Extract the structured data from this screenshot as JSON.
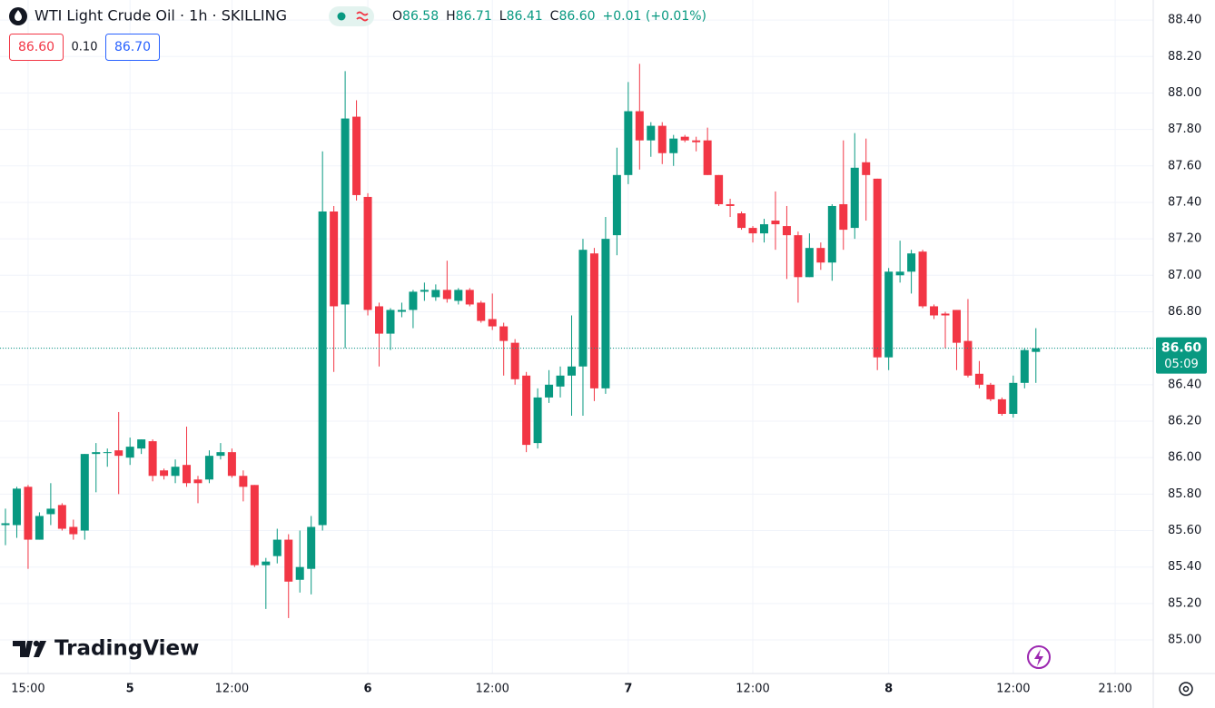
{
  "chart_data": {
    "type": "candlestick",
    "title": "WTI Light Crude Oil · 1h · SKILLING",
    "categories": [
      null,
      null,
      "15:00",
      null,
      null,
      null,
      null,
      null,
      null,
      null,
      null,
      "5",
      null,
      null,
      null,
      null,
      null,
      null,
      null,
      null,
      "12:00",
      null,
      null,
      null,
      null,
      null,
      null,
      null,
      null,
      null,
      null,
      null,
      "6",
      null,
      null,
      null,
      null,
      null,
      null,
      null,
      null,
      null,
      null,
      "12:00",
      null,
      null,
      null,
      null,
      null,
      null,
      null,
      null,
      null,
      null,
      null,
      "7",
      null,
      null,
      null,
      null,
      null,
      null,
      null,
      null,
      null,
      null,
      "12:00",
      null,
      null,
      null,
      null,
      null,
      null,
      null,
      null,
      null,
      null,
      null,
      "8",
      null,
      null,
      null,
      null,
      null,
      null,
      null,
      null,
      null,
      null,
      "12:00",
      null,
      null,
      null,
      null,
      null,
      null,
      null,
      null,
      "21:00"
    ],
    "open": [
      85.63,
      85.63,
      85.84,
      85.55,
      85.69,
      85.74,
      85.62,
      85.6,
      86.02,
      86.03,
      86.04,
      86.0,
      86.05,
      86.09,
      85.93,
      85.9,
      85.96,
      85.88,
      85.88,
      86.01,
      86.03,
      85.9,
      85.85,
      85.41,
      85.46,
      85.55,
      85.33,
      85.39,
      85.63,
      87.35,
      86.84,
      87.87,
      87.43,
      86.83,
      86.68,
      86.8,
      86.81,
      86.91,
      86.88,
      86.92,
      86.86,
      86.92,
      86.85,
      86.76,
      86.72,
      86.63,
      86.45,
      86.08,
      86.33,
      86.39,
      86.45,
      86.5,
      87.12,
      86.38,
      87.22,
      87.55,
      87.9,
      87.74,
      87.82,
      87.67,
      87.76,
      87.74,
      87.74,
      87.55,
      87.39,
      87.34,
      87.26,
      87.23,
      87.3,
      87.27,
      87.22,
      86.99,
      87.15,
      87.07,
      87.39,
      87.26,
      87.62,
      87.53,
      86.55,
      87.0,
      87.02,
      87.13,
      86.83,
      86.79,
      86.81,
      86.64,
      86.46,
      86.4,
      86.32,
      86.24,
      86.41,
      86.58,
      null,
      null,
      null,
      null,
      null,
      null,
      null
    ],
    "high": [
      85.72,
      85.84,
      85.85,
      85.7,
      85.86,
      85.75,
      85.66,
      86.02,
      86.08,
      86.05,
      86.25,
      86.11,
      86.1,
      86.1,
      85.94,
      85.99,
      86.17,
      85.9,
      86.04,
      86.08,
      86.05,
      85.93,
      85.85,
      85.45,
      85.61,
      85.58,
      85.6,
      85.68,
      87.68,
      87.38,
      88.12,
      87.96,
      87.45,
      86.85,
      86.82,
      86.85,
      86.92,
      86.96,
      86.95,
      87.08,
      86.93,
      86.93,
      86.86,
      86.9,
      86.74,
      86.65,
      86.47,
      86.38,
      86.48,
      86.5,
      86.78,
      87.2,
      87.15,
      87.32,
      87.7,
      88.06,
      88.16,
      87.84,
      87.84,
      87.77,
      87.77,
      87.76,
      87.81,
      87.55,
      87.42,
      87.35,
      87.27,
      87.31,
      87.46,
      87.38,
      87.24,
      87.23,
      87.18,
      87.39,
      87.74,
      87.78,
      87.75,
      87.53,
      87.04,
      87.19,
      87.14,
      87.14,
      86.84,
      86.8,
      86.81,
      86.87,
      86.53,
      86.41,
      86.33,
      86.45,
      86.6,
      86.71,
      null,
      null,
      null,
      null,
      null,
      null,
      null
    ],
    "low": [
      85.52,
      85.56,
      85.39,
      85.55,
      85.63,
      85.6,
      85.55,
      85.55,
      85.81,
      85.95,
      85.8,
      85.96,
      86.02,
      85.87,
      85.88,
      85.86,
      85.84,
      85.75,
      85.86,
      85.99,
      85.89,
      85.76,
      85.4,
      85.17,
      85.42,
      85.12,
      85.26,
      85.25,
      85.6,
      86.47,
      86.6,
      87.41,
      86.78,
      86.5,
      86.59,
      86.77,
      86.71,
      86.86,
      86.86,
      86.85,
      86.84,
      86.83,
      86.74,
      86.7,
      86.45,
      86.4,
      86.03,
      86.05,
      86.3,
      86.33,
      86.23,
      86.23,
      86.31,
      86.35,
      87.11,
      87.5,
      87.58,
      87.65,
      87.61,
      87.6,
      87.73,
      87.68,
      87.55,
      87.38,
      87.32,
      87.25,
      87.18,
      87.18,
      87.14,
      86.98,
      86.85,
      86.99,
      87.03,
      86.97,
      87.14,
      87.2,
      87.3,
      86.48,
      86.48,
      86.96,
      86.9,
      86.82,
      86.76,
      86.6,
      86.48,
      86.44,
      86.38,
      86.31,
      86.23,
      86.22,
      86.38,
      86.41,
      null,
      null,
      null,
      null,
      null,
      null,
      null
    ],
    "close": [
      85.64,
      85.83,
      85.55,
      85.68,
      85.72,
      85.61,
      85.58,
      86.02,
      86.03,
      86.03,
      86.01,
      86.06,
      86.1,
      85.9,
      85.9,
      85.95,
      85.86,
      85.86,
      86.01,
      86.03,
      85.9,
      85.84,
      85.41,
      85.43,
      85.55,
      85.32,
      85.4,
      85.62,
      87.35,
      86.83,
      87.86,
      87.44,
      86.81,
      86.68,
      86.81,
      86.81,
      86.91,
      86.92,
      86.92,
      86.87,
      86.92,
      86.84,
      86.75,
      86.72,
      86.64,
      86.43,
      86.07,
      86.33,
      86.4,
      86.45,
      86.5,
      87.14,
      86.38,
      87.2,
      87.55,
      87.9,
      87.74,
      87.82,
      87.67,
      87.75,
      87.74,
      87.73,
      87.55,
      87.39,
      87.38,
      87.26,
      87.23,
      87.28,
      87.28,
      87.22,
      86.99,
      87.15,
      87.07,
      87.38,
      87.25,
      87.59,
      87.55,
      86.55,
      87.02,
      87.02,
      87.12,
      86.83,
      86.78,
      86.78,
      86.63,
      86.45,
      86.4,
      86.32,
      86.24,
      86.41,
      86.59,
      86.6,
      null,
      null,
      null,
      null,
      null,
      null,
      null
    ],
    "up_color": "#089981",
    "down_color": "#f23645",
    "ylim": [
      84.816,
      88.51
    ],
    "yticks": [
      {
        "value": 88.4,
        "label": "88.40"
      },
      {
        "value": 88.2,
        "label": "88.20"
      },
      {
        "value": 88,
        "label": "88.00"
      },
      {
        "value": 87.8,
        "label": "87.80"
      },
      {
        "value": 87.6,
        "label": "87.60"
      },
      {
        "value": 87.4,
        "label": "87.40"
      },
      {
        "value": 87.2,
        "label": "87.20"
      },
      {
        "value": 87,
        "label": "87.00"
      },
      {
        "value": 86.8,
        "label": "86.80"
      },
      {
        "value": 86.6,
        "label": "86.60"
      },
      {
        "value": 86.4,
        "label": "86.40"
      },
      {
        "value": 86.2,
        "label": "86.20"
      },
      {
        "value": 86,
        "label": "86.00"
      },
      {
        "value": 85.8,
        "label": "85.80"
      },
      {
        "value": 85.6,
        "label": "85.60"
      },
      {
        "value": 85.4,
        "label": "85.40"
      },
      {
        "value": 85.2,
        "label": "85.20"
      },
      {
        "value": 85,
        "label": "85.00"
      }
    ],
    "grid": true,
    "last_price": {
      "value": 86.6,
      "label": "86.60",
      "countdown": "05:09"
    }
  },
  "header": {
    "readout": [
      {
        "label": "O",
        "value": "86.58"
      },
      {
        "label": "H",
        "value": "86.71"
      },
      {
        "label": "L",
        "value": "86.41"
      },
      {
        "label": "C",
        "value": "86.60"
      }
    ],
    "change": "+0.01 (+0.01%)",
    "bid": "86.60",
    "spread": "0.10",
    "ask": "86.70"
  },
  "watermark": "TradingView"
}
